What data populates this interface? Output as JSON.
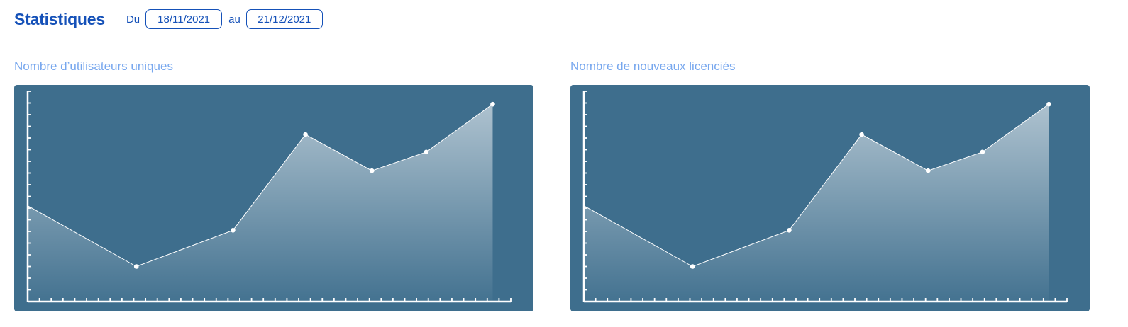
{
  "header": {
    "title": "Statistiques",
    "from_label": "Du",
    "from_date": "18/11/2021",
    "to_label": "au",
    "to_date": "21/12/2021"
  },
  "colors": {
    "accent": "#1551b8",
    "chart_label": "#77a7ee",
    "chart_bg": "#3e6e8d",
    "line": "#ffffff"
  },
  "chart_data": [
    {
      "type": "area",
      "title": "Nombre d’utilisateurs uniques",
      "x": [
        0,
        9,
        17,
        23,
        28.5,
        33,
        38.5
      ],
      "y": [
        8.2,
        3.0,
        6.1,
        14.3,
        11.2,
        12.8,
        16.9
      ],
      "xlim": [
        0,
        40
      ],
      "ylim": [
        0,
        18
      ],
      "x_ticks": 41,
      "y_ticks": 18,
      "grid": false,
      "legend": "none"
    },
    {
      "type": "area",
      "title": "Nombre de nouveaux licenciés",
      "x": [
        0,
        9,
        17,
        23,
        28.5,
        33,
        38.5
      ],
      "y": [
        8.2,
        3.0,
        6.1,
        14.3,
        11.2,
        12.8,
        16.9
      ],
      "xlim": [
        0,
        40
      ],
      "ylim": [
        0,
        18
      ],
      "x_ticks": 41,
      "y_ticks": 18,
      "grid": false,
      "legend": "none"
    }
  ]
}
